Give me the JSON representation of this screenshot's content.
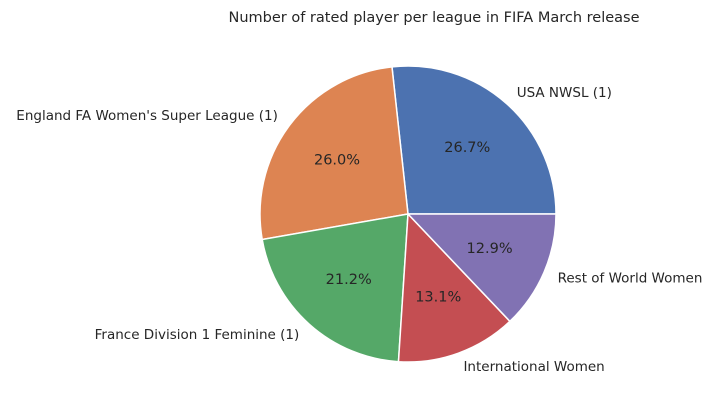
{
  "chart_data": {
    "type": "pie",
    "title": "Number of rated player per league in FIFA March release",
    "start_angle": 0,
    "direction": "counterclockwise",
    "slices": [
      {
        "label": "USA NWSL (1)",
        "value": 26.7,
        "pct_label": "26.7%",
        "color": "#4c72b0"
      },
      {
        "label": "England FA Women's Super League (1)",
        "value": 26.0,
        "pct_label": "26.0%",
        "color": "#dd8452"
      },
      {
        "label": "France Division 1 Feminine (1)",
        "value": 21.2,
        "pct_label": "21.2%",
        "color": "#55a868"
      },
      {
        "label": "International Women",
        "value": 13.1,
        "pct_label": "13.1%",
        "color": "#c44e52"
      },
      {
        "label": "Rest of World Women",
        "value": 12.9,
        "pct_label": "12.9%",
        "color": "#8172b3"
      }
    ]
  }
}
